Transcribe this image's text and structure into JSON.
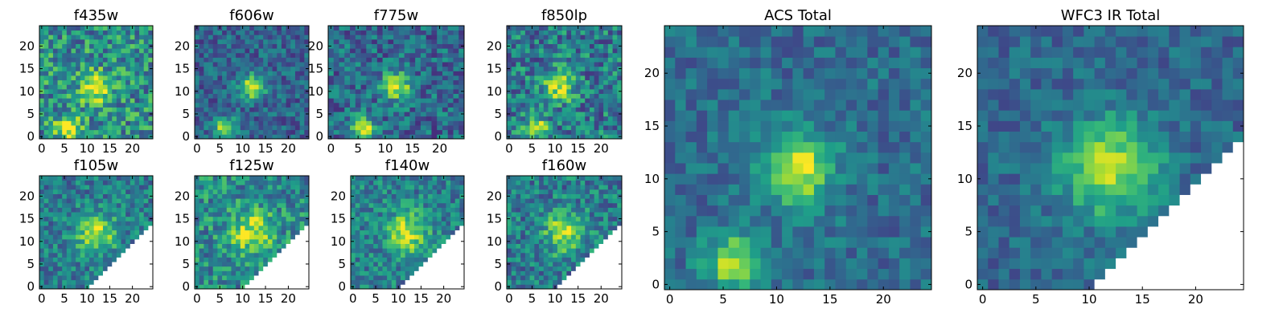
{
  "figure": {
    "colormap": "viridis",
    "colormap_stops": [
      "#440154",
      "#482878",
      "#3e4989",
      "#31688e",
      "#26828e",
      "#1f9e89",
      "#35b779",
      "#6ece58",
      "#b5de2b",
      "#fde725"
    ],
    "missing_color": "#ffffff"
  },
  "chart_data": [
    {
      "type": "heatmap",
      "title": "f435w",
      "grid_size": 25,
      "xlim": [
        -0.5,
        24.5
      ],
      "ylim": [
        -0.5,
        24.5
      ],
      "x_ticks": [
        0,
        5,
        10,
        15,
        20
      ],
      "y_ticks": [
        0,
        5,
        10,
        15,
        20
      ],
      "sources": [
        {
          "x": 12,
          "y": 11,
          "peak": 0.62,
          "sigma": 2.2
        },
        {
          "x": 6,
          "y": 2,
          "peak": 0.6,
          "sigma": 1.8
        }
      ],
      "background": 0.5,
      "noise": 0.28,
      "masked_below_diagonal": false
    },
    {
      "type": "heatmap",
      "title": "f606w",
      "grid_size": 25,
      "xlim": [
        -0.5,
        24.5
      ],
      "ylim": [
        -0.5,
        24.5
      ],
      "x_ticks": [
        0,
        5,
        10,
        15,
        20
      ],
      "y_ticks": [
        0,
        5,
        10,
        15,
        20
      ],
      "sources": [
        {
          "x": 12,
          "y": 11,
          "peak": 0.65,
          "sigma": 1.9
        },
        {
          "x": 6,
          "y": 2,
          "peak": 0.6,
          "sigma": 1.6
        }
      ],
      "background": 0.32,
      "noise": 0.18,
      "masked_below_diagonal": false
    },
    {
      "type": "heatmap",
      "title": "f775w",
      "grid_size": 25,
      "xlim": [
        -0.5,
        24.5
      ],
      "ylim": [
        -0.5,
        24.5
      ],
      "x_ticks": [
        0,
        5,
        10,
        15,
        20
      ],
      "y_ticks": [
        0,
        5,
        10,
        15,
        20
      ],
      "sources": [
        {
          "x": 12,
          "y": 11,
          "peak": 0.62,
          "sigma": 2.0
        },
        {
          "x": 6,
          "y": 2,
          "peak": 0.55,
          "sigma": 1.7
        }
      ],
      "background": 0.35,
      "noise": 0.22,
      "masked_below_diagonal": false
    },
    {
      "type": "heatmap",
      "title": "f850lp",
      "grid_size": 25,
      "xlim": [
        -0.5,
        24.5
      ],
      "ylim": [
        -0.5,
        24.5
      ],
      "x_ticks": [
        0,
        5,
        10,
        15,
        20
      ],
      "y_ticks": [
        0,
        5,
        10,
        15,
        20
      ],
      "sources": [
        {
          "x": 11,
          "y": 11,
          "peak": 0.55,
          "sigma": 2.2
        },
        {
          "x": 6,
          "y": 2,
          "peak": 0.5,
          "sigma": 1.7
        }
      ],
      "background": 0.42,
      "noise": 0.26,
      "masked_below_diagonal": false
    },
    {
      "type": "heatmap",
      "title": "f105w",
      "grid_size": 25,
      "xlim": [
        -0.5,
        24.5
      ],
      "ylim": [
        -0.5,
        24.5
      ],
      "x_ticks": [
        0,
        5,
        10,
        15,
        20
      ],
      "y_ticks": [
        0,
        5,
        10,
        15,
        20
      ],
      "sources": [
        {
          "x": 12,
          "y": 12,
          "peak": 0.5,
          "sigma": 3.0
        }
      ],
      "background": 0.42,
      "noise": 0.2,
      "masked_below_diagonal": true
    },
    {
      "type": "heatmap",
      "title": "f125w",
      "grid_size": 25,
      "xlim": [
        -0.5,
        24.5
      ],
      "ylim": [
        -0.5,
        24.5
      ],
      "x_ticks": [
        0,
        5,
        10,
        15,
        20
      ],
      "y_ticks": [
        0,
        5,
        10,
        15,
        20
      ],
      "sources": [
        {
          "x": 12,
          "y": 12,
          "peak": 0.45,
          "sigma": 3.2
        }
      ],
      "background": 0.48,
      "noise": 0.24,
      "masked_below_diagonal": true
    },
    {
      "type": "heatmap",
      "title": "f140w",
      "grid_size": 25,
      "xlim": [
        -0.5,
        24.5
      ],
      "ylim": [
        -0.5,
        24.5
      ],
      "x_ticks": [
        0,
        5,
        10,
        15,
        20
      ],
      "y_ticks": [
        0,
        5,
        10,
        15,
        20
      ],
      "sources": [
        {
          "x": 12,
          "y": 12,
          "peak": 0.5,
          "sigma": 3.0
        }
      ],
      "background": 0.44,
      "noise": 0.2,
      "masked_below_diagonal": true
    },
    {
      "type": "heatmap",
      "title": "f160w",
      "grid_size": 25,
      "xlim": [
        -0.5,
        24.5
      ],
      "ylim": [
        -0.5,
        24.5
      ],
      "x_ticks": [
        0,
        5,
        10,
        15,
        20
      ],
      "y_ticks": [
        0,
        5,
        10,
        15,
        20
      ],
      "sources": [
        {
          "x": 12,
          "y": 12,
          "peak": 0.5,
          "sigma": 3.0
        }
      ],
      "background": 0.42,
      "noise": 0.22,
      "masked_below_diagonal": true
    },
    {
      "type": "heatmap",
      "title": "ACS Total",
      "grid_size": 25,
      "xlim": [
        -0.5,
        24.5
      ],
      "ylim": [
        -0.5,
        24.5
      ],
      "x_ticks": [
        0,
        5,
        10,
        15,
        20
      ],
      "y_ticks": [
        0,
        5,
        10,
        15,
        20
      ],
      "sources": [
        {
          "x": 12,
          "y": 11,
          "peak": 0.62,
          "sigma": 2.3
        },
        {
          "x": 6,
          "y": 2,
          "peak": 0.55,
          "sigma": 1.8
        }
      ],
      "background": 0.36,
      "noise": 0.14,
      "masked_below_diagonal": false
    },
    {
      "type": "heatmap",
      "title": "WFC3 IR Total",
      "grid_size": 25,
      "xlim": [
        -0.5,
        24.5
      ],
      "ylim": [
        -0.5,
        24.5
      ],
      "x_ticks": [
        0,
        5,
        10,
        15,
        20
      ],
      "y_ticks": [
        0,
        5,
        10,
        15,
        20
      ],
      "sources": [
        {
          "x": 12,
          "y": 11,
          "peak": 0.55,
          "sigma": 3.2
        }
      ],
      "background": 0.34,
      "noise": 0.13,
      "masked_below_diagonal": true
    }
  ]
}
